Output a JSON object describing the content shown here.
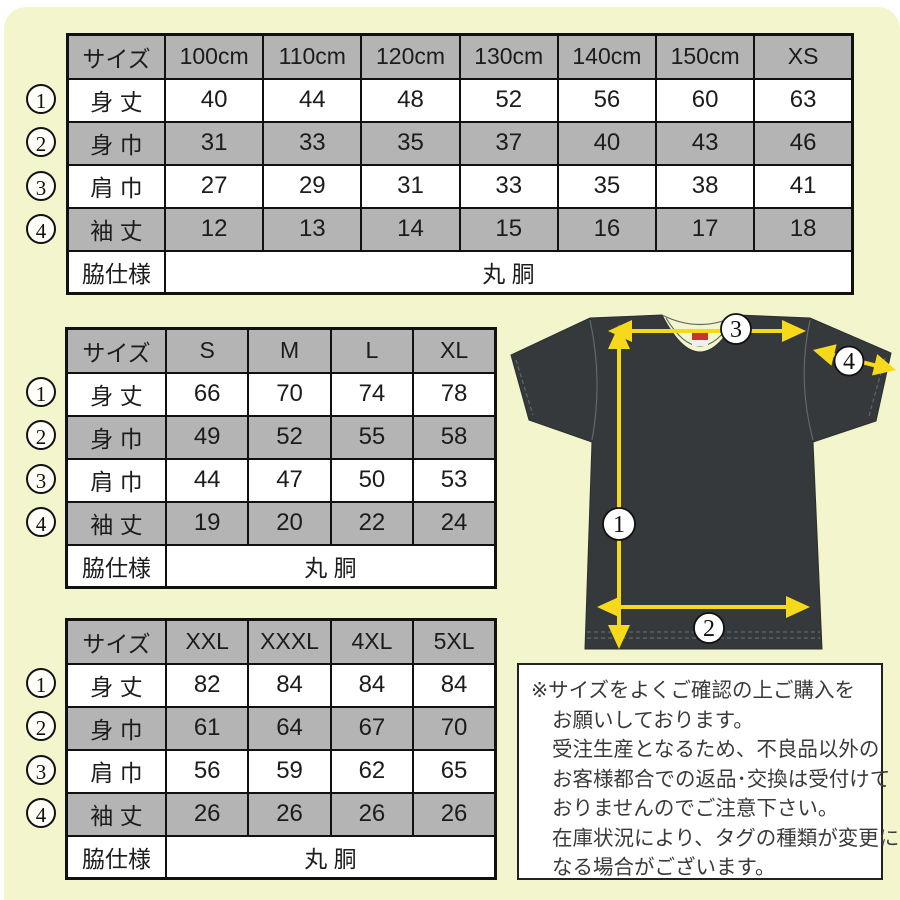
{
  "page": {
    "background_color": "#f3f6cd",
    "accent_yellow": "#f6d91b",
    "shirt_color": "#35393b",
    "table_gray": "#b4b4b4"
  },
  "markers": {
    "labels": [
      "1",
      "2",
      "3",
      "4"
    ]
  },
  "tables": [
    {
      "name": "kids-sizes",
      "header": [
        "サイズ",
        "100cm",
        "110cm",
        "120cm",
        "130cm",
        "140cm",
        "150cm",
        "XS"
      ],
      "rows": [
        {
          "label": "身 丈",
          "values": [
            "40",
            "44",
            "48",
            "52",
            "56",
            "60",
            "63"
          ]
        },
        {
          "label": "身 巾",
          "values": [
            "31",
            "33",
            "35",
            "37",
            "40",
            "43",
            "46"
          ]
        },
        {
          "label": "肩 巾",
          "values": [
            "27",
            "29",
            "31",
            "33",
            "35",
            "38",
            "41"
          ]
        },
        {
          "label": "袖 丈",
          "values": [
            "12",
            "13",
            "14",
            "15",
            "16",
            "17",
            "18"
          ]
        }
      ],
      "footer": {
        "label": "脇仕様",
        "value": "丸 胴"
      }
    },
    {
      "name": "adult-sizes",
      "header": [
        "サイズ",
        "S",
        "M",
        "L",
        "XL"
      ],
      "rows": [
        {
          "label": "身 丈",
          "values": [
            "66",
            "70",
            "74",
            "78"
          ]
        },
        {
          "label": "身 巾",
          "values": [
            "49",
            "52",
            "55",
            "58"
          ]
        },
        {
          "label": "肩 巾",
          "values": [
            "44",
            "47",
            "50",
            "53"
          ]
        },
        {
          "label": "袖 丈",
          "values": [
            "19",
            "20",
            "22",
            "24"
          ]
        }
      ],
      "footer": {
        "label": "脇仕様",
        "value": "丸 胴"
      }
    },
    {
      "name": "big-sizes",
      "header": [
        "サイズ",
        "XXL",
        "XXXL",
        "4XL",
        "5XL"
      ],
      "rows": [
        {
          "label": "身 丈",
          "values": [
            "82",
            "84",
            "84",
            "84"
          ]
        },
        {
          "label": "身 巾",
          "values": [
            "61",
            "64",
            "67",
            "70"
          ]
        },
        {
          "label": "肩 巾",
          "values": [
            "56",
            "59",
            "62",
            "65"
          ]
        },
        {
          "label": "袖 丈",
          "values": [
            "26",
            "26",
            "26",
            "26"
          ]
        }
      ],
      "footer": {
        "label": "脇仕様",
        "value": "丸 胴"
      }
    }
  ],
  "note": {
    "lines": [
      "※サイズをよくご確認の上ご購入を",
      "お願いしております。",
      "受注生産となるため、不良品以外の",
      "お客様都合での返品･交換は受付けて",
      "おりませんのでご注意下さい。",
      "在庫状況により、タグの種類が変更に",
      "なる場合がございます。"
    ]
  }
}
